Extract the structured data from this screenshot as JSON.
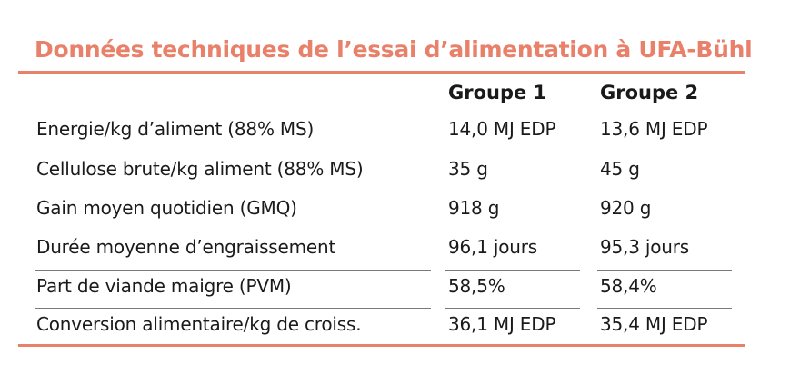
{
  "title": "Données techniques de l’essai d’alimentation à UFA-Bühl",
  "columns": [
    "",
    "Groupe 1",
    "Groupe 2"
  ],
  "rows": [
    {
      "label": "Energie/kg d’aliment (88% MS)",
      "g1": "14,0 MJ EDP",
      "g2": "13,6 MJ EDP"
    },
    {
      "label": "Cellulose brute/kg aliment (88% MS)",
      "g1": "35 g",
      "g2": "45 g"
    },
    {
      "label": "Gain moyen quotidien (GMQ)",
      "g1": "918 g",
      "g2": "920 g"
    },
    {
      "label": "Durée moyenne d’engraissement",
      "g1": "96,1 jours",
      "g2": "95,3 jours"
    },
    {
      "label": "Part de viande maigre (PVM)",
      "g1": "58,5%",
      "g2": "58,4%"
    },
    {
      "label": "Conversion alimentaire/kg de croiss.",
      "g1": "36,1 MJ EDP",
      "g2": "35,4 MJ EDP"
    }
  ],
  "colors": {
    "accent": "#e8806a",
    "rule": "#7a7a7a",
    "text": "#1a1a1a"
  }
}
